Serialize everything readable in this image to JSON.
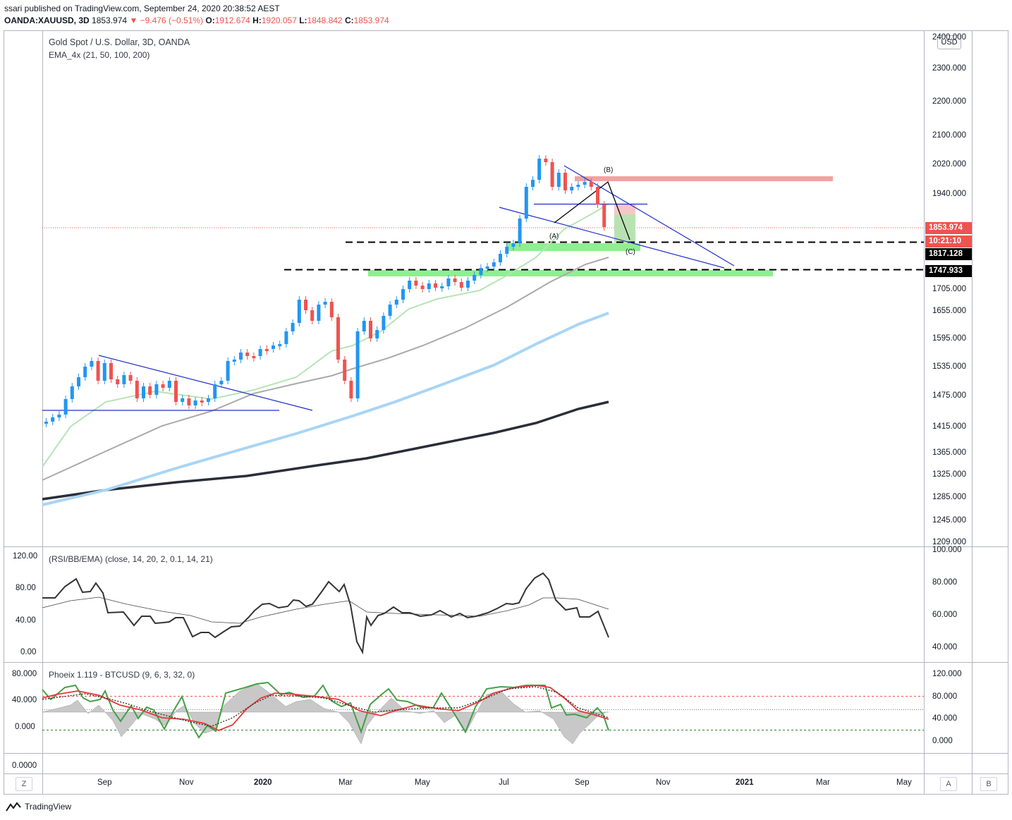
{
  "header": {
    "published": "ssari published on TradingView.com, September 24, 2020 20:38:52 AEST",
    "symbol": "OANDA:XAUUSD, 3D",
    "price": "1853.974",
    "change": "▼ −9.476 (−0.51%)",
    "o_label": "O:",
    "o_value": "1912.674",
    "h_label": "H:",
    "h_value": "1920.057",
    "l_label": "L:",
    "l_value": "1848.842",
    "c_label": "C:",
    "c_value": "1853.974"
  },
  "main_pane": {
    "title": "Gold Spot / U.S. Dollar, 3D, OANDA",
    "indicator": "EMA_4x (21, 50, 100, 200)",
    "currency": "USD",
    "price_ticks": [
      "2400.000",
      "2300.000",
      "2200.000",
      "2100.000",
      "2020.000",
      "1940.000",
      "1705.000",
      "1655.000",
      "1595.000",
      "1535.000",
      "1475.000",
      "1415.000",
      "1365.000",
      "1325.000",
      "1285.000",
      "1245.000",
      "1209.000"
    ],
    "price_tag": "1853.974",
    "countdown_tag": "10:21:10",
    "level_1": "1817.128",
    "level_2": "1747.933",
    "wave_labels": [
      "(A)",
      "(B)",
      "(C)"
    ]
  },
  "rsi_pane": {
    "title": "(RSI/BB/EMA) (close, 14, 20, 2, 0.1, 14, 21)",
    "left_ticks": [
      "120.00",
      "80.00",
      "40.00",
      "0.00"
    ],
    "right_ticks": [
      "100.000",
      "80.000",
      "60.000",
      "40.000"
    ]
  },
  "phoenix_pane": {
    "title": "Phoeix 1.119 - BTCUSD (9, 6, 3, 32, 0)",
    "left_ticks": [
      "80.000",
      "40.000",
      "0.000"
    ],
    "right_ticks": [
      "120.000",
      "80.000",
      "40.000",
      "0.000"
    ]
  },
  "empty_pane": {
    "left_tick": "0.0000"
  },
  "time_axis": [
    "Sep",
    "Nov",
    "2020",
    "Mar",
    "May",
    "Jul",
    "Sep",
    "Nov",
    "2021",
    "Mar",
    "May"
  ],
  "footer": {
    "brand": "TradingView",
    "zoom_button": "Z",
    "a_button": "A",
    "b_button": "B"
  },
  "colors": {
    "up": "#2196f3",
    "down": "#ef5350",
    "support_zone": "#90ee90",
    "resistance_zone": "#f4a1a1",
    "price_tag": "#ef5350"
  },
  "chart_data": {
    "type": "candlestick",
    "symbol": "XAUUSD",
    "timeframe": "3D",
    "ylim": [
      1209,
      2440
    ],
    "x_range": [
      "Jul 2019",
      "Jun 2021"
    ],
    "last": {
      "open": 1912.674,
      "high": 1920.057,
      "low": 1848.842,
      "close": 1853.974
    },
    "levels": [
      1817.128,
      1747.933
    ],
    "ema": [
      {
        "name": "EMA 21",
        "values": [
          1337,
          1440,
          1475,
          1500,
          1590,
          1700,
          1820,
          1880
        ]
      },
      {
        "name": "EMA 50",
        "values": [
          1313,
          1390,
          1430,
          1480,
          1530,
          1600,
          1700,
          1790
        ]
      },
      {
        "name": "EMA 100",
        "values": [
          1273,
          1320,
          1360,
          1405,
          1450,
          1520,
          1590,
          1660
        ]
      },
      {
        "name": "EMA 200",
        "values": [
          1285,
          1310,
          1330,
          1355,
          1370,
          1395,
          1425,
          1470
        ]
      }
    ]
  }
}
